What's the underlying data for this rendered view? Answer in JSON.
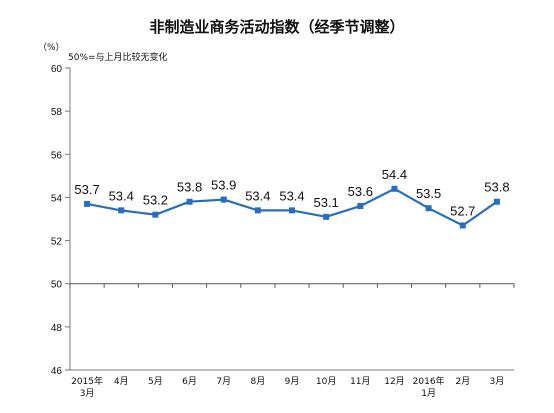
{
  "chart_data": {
    "type": "line",
    "title": "非制造业商务活动指数（经季节调整）",
    "unit_label": "（%）",
    "note": "50%=与上月比较无变化",
    "ylim": [
      46,
      60
    ],
    "yticks": [
      46,
      48,
      50,
      52,
      54,
      56,
      58,
      60
    ],
    "reference_line": 50,
    "categories": [
      {
        "line1": "2015年",
        "line2": "3月"
      },
      {
        "line1": "4月",
        "line2": ""
      },
      {
        "line1": "5月",
        "line2": ""
      },
      {
        "line1": "6月",
        "line2": ""
      },
      {
        "line1": "7月",
        "line2": ""
      },
      {
        "line1": "8月",
        "line2": ""
      },
      {
        "line1": "9月",
        "line2": ""
      },
      {
        "line1": "10月",
        "line2": ""
      },
      {
        "line1": "11月",
        "line2": ""
      },
      {
        "line1": "12月",
        "line2": ""
      },
      {
        "line1": "2016年",
        "line2": "1月"
      },
      {
        "line1": "2月",
        "line2": ""
      },
      {
        "line1": "3月",
        "line2": ""
      }
    ],
    "series": [
      {
        "values": [
          53.7,
          53.4,
          53.2,
          53.8,
          53.9,
          53.4,
          53.4,
          53.1,
          53.6,
          54.4,
          53.5,
          52.7,
          53.8
        ],
        "labels": [
          "53.7",
          "53.4",
          "53.2",
          "53.8",
          "53.9",
          "53.4",
          "53.4",
          "53.1",
          "53.6",
          "54.4",
          "53.5",
          "52.7",
          "53.8"
        ],
        "color": "#2a6ebb"
      }
    ],
    "grid": false
  }
}
